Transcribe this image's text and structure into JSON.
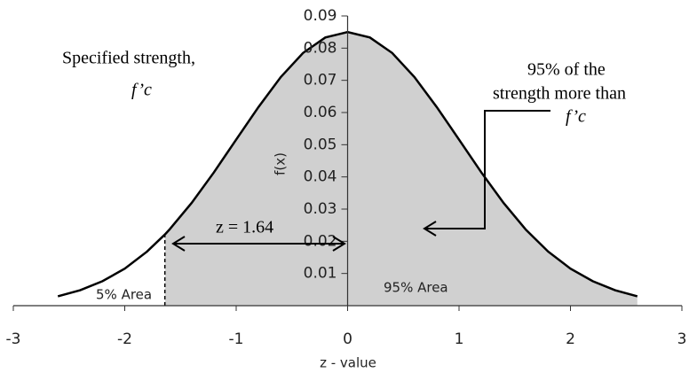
{
  "chart_data": {
    "type": "area",
    "x": [
      -2.6,
      -2.4,
      -2.2,
      -2.0,
      -1.8,
      -1.64,
      -1.6,
      -1.4,
      -1.2,
      -1.0,
      -0.8,
      -0.6,
      -0.4,
      -0.2,
      0,
      0.2,
      0.4,
      0.6,
      0.8,
      1.0,
      1.2,
      1.4,
      1.6,
      1.8,
      2.0,
      2.2,
      2.4,
      2.6
    ],
    "values": [
      0.0029,
      0.0048,
      0.0076,
      0.0115,
      0.0168,
      0.0221,
      0.0236,
      0.0319,
      0.0414,
      0.0516,
      0.0617,
      0.071,
      0.0785,
      0.0833,
      0.085,
      0.0833,
      0.0785,
      0.071,
      0.0617,
      0.0516,
      0.0414,
      0.0319,
      0.0236,
      0.0168,
      0.0115,
      0.0076,
      0.0048,
      0.0029
    ],
    "color": "#000000",
    "fill": "#d0d0d0",
    "marker_x": -1.64,
    "xlim": [
      -3,
      3
    ],
    "xticks": [
      -3,
      -2,
      -1,
      0,
      1,
      2,
      3
    ],
    "ylim": [
      0,
      0.09
    ],
    "yticks": [
      0.01,
      0.02,
      0.03,
      0.04,
      0.05,
      0.06,
      0.07,
      0.08,
      0.09
    ],
    "xlabel": "z - value",
    "ylabel": "f(x)",
    "annotations": [
      "Specified strength,",
      "f’c",
      "95% of the",
      "strength more than",
      "f’c",
      "z = 1.64",
      "5% Area",
      "95% Area"
    ]
  }
}
